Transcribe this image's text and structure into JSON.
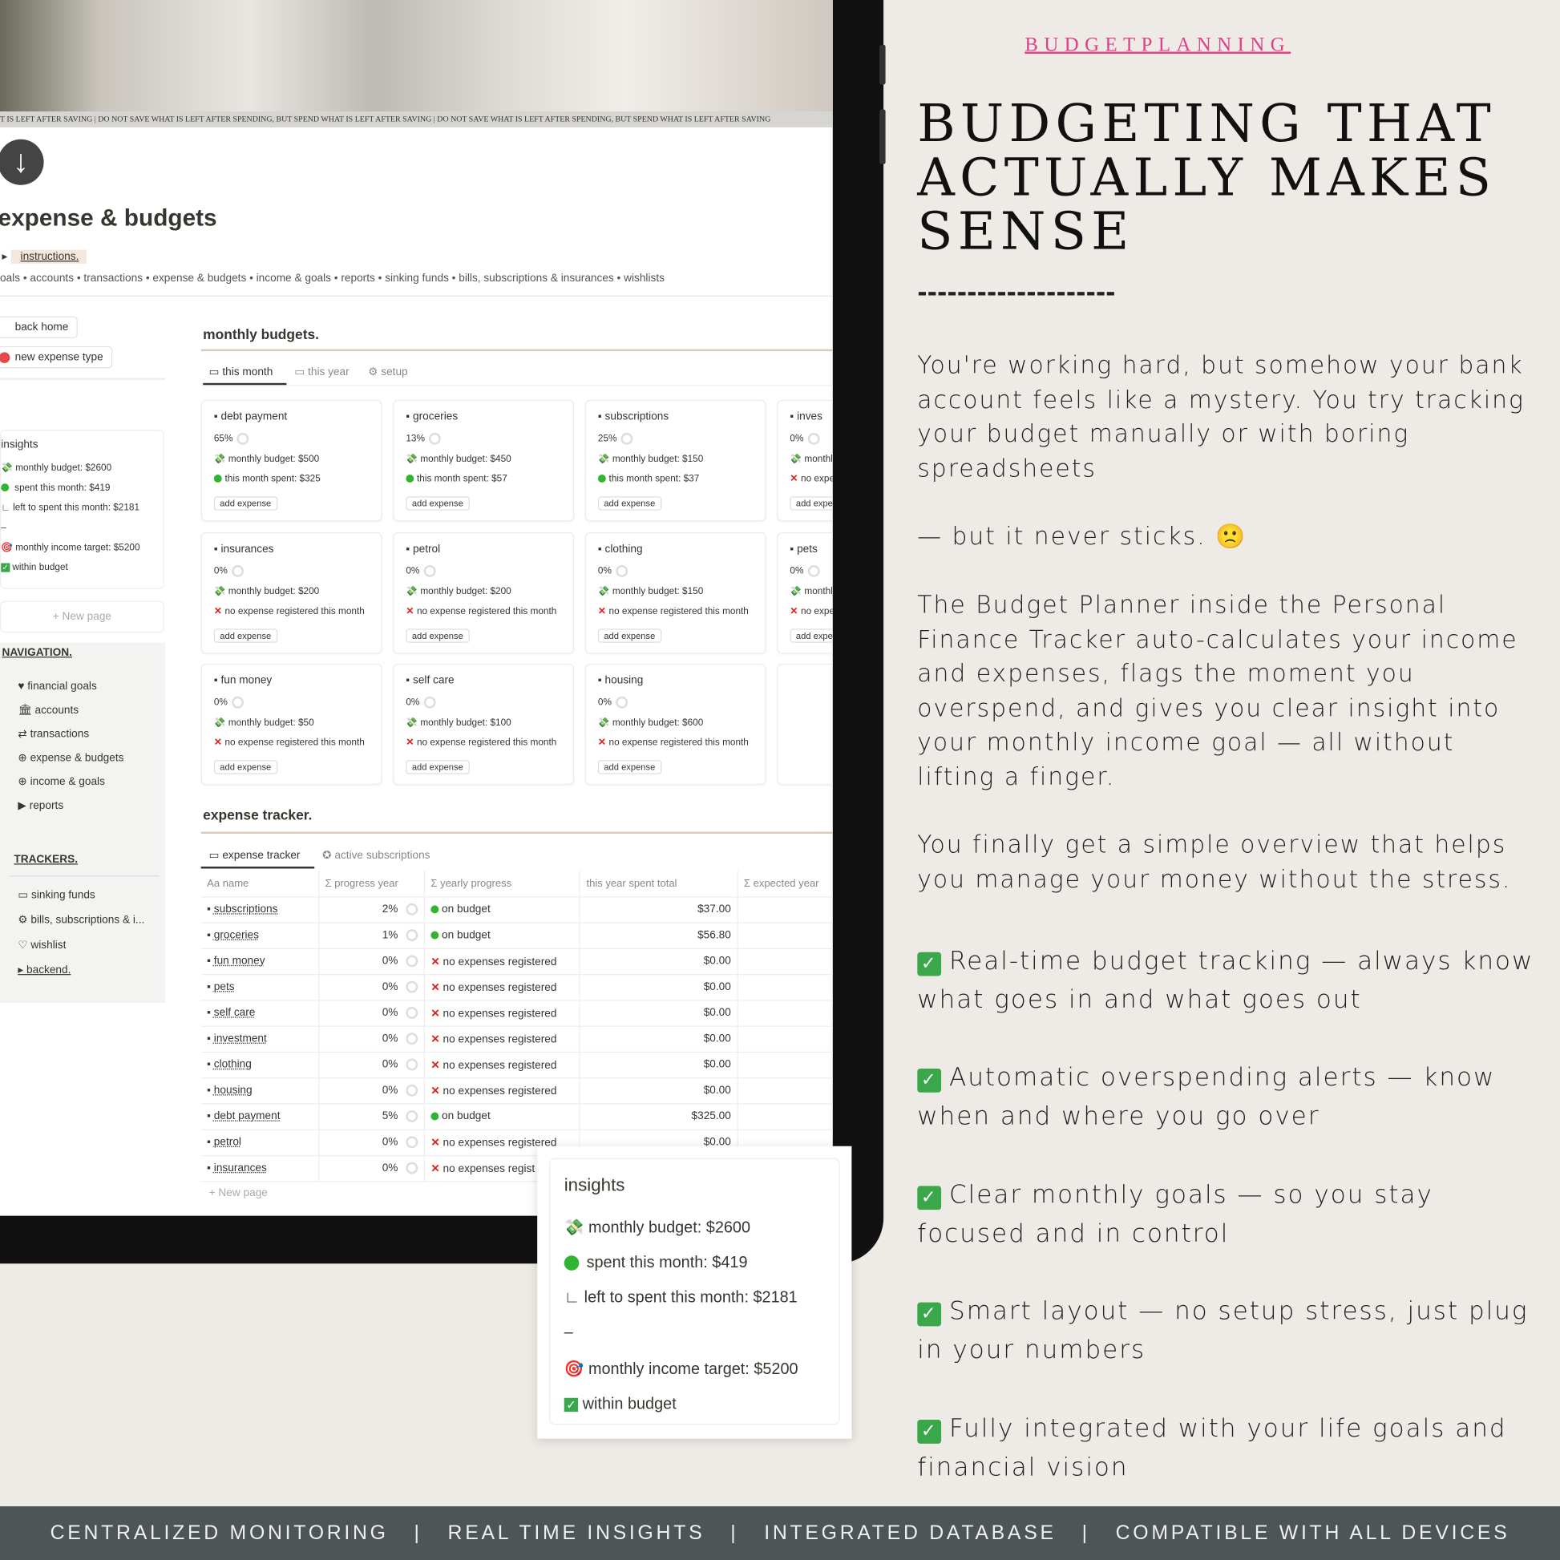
{
  "screen": {
    "quote_strip": "T IS LEFT AFTER SAVING | DO NOT SAVE WHAT IS LEFT AFTER SPENDING, BUT SPEND WHAT IS LEFT AFTER SAVING | DO NOT SAVE WHAT IS LEFT AFTER SPENDING, BUT SPEND WHAT IS LEFT AFTER SAVING",
    "page_title": "expense & budgets",
    "instructions": "instructions.",
    "breadcrumb": "oals • accounts • transactions • expense & budgets • income & goals • reports • sinking funds • bills, subscriptions & insurances • wishlists",
    "sidebar": {
      "back_home": "back home",
      "new_expense_type": "new expense type",
      "insights_title": "insights",
      "insights": [
        "monthly budget: $2600",
        "spent this month: $419",
        "left to spent this month: $2181",
        "–",
        "monthly income target: $5200",
        "within budget"
      ],
      "new_page": "New page",
      "navigation_title": "NAVIGATION.",
      "navigation": [
        "financial goals",
        "accounts",
        "transactions",
        "expense & budgets",
        "income & goals",
        "reports"
      ],
      "trackers_title": "TRACKERS.",
      "trackers": [
        "sinking funds",
        "bills, subscriptions & i...",
        "wishlist",
        "backend."
      ]
    },
    "monthly": {
      "title": "monthly budgets.",
      "tabs": [
        "this month",
        "this year",
        "setup"
      ],
      "cards": [
        {
          "name": "debt payment",
          "pct": "65%",
          "budget": "monthly budget: $500",
          "status": "this month spent: $325",
          "ok": true
        },
        {
          "name": "groceries",
          "pct": "13%",
          "budget": "monthly budget: $450",
          "status": "this month spent: $57",
          "ok": true
        },
        {
          "name": "subscriptions",
          "pct": "25%",
          "budget": "monthly budget: $150",
          "status": "this month spent: $37",
          "ok": true
        },
        {
          "name": "inves",
          "pct": "0%",
          "budget": "monthly",
          "status": "no expe",
          "ok": false
        },
        {
          "name": "insurances",
          "pct": "0%",
          "budget": "monthly budget: $200",
          "status": "no expense registered this month",
          "ok": false
        },
        {
          "name": "petrol",
          "pct": "0%",
          "budget": "monthly budget: $200",
          "status": "no expense registered this month",
          "ok": false
        },
        {
          "name": "clothing",
          "pct": "0%",
          "budget": "monthly budget: $150",
          "status": "no expense registered this month",
          "ok": false
        },
        {
          "name": "pets",
          "pct": "0%",
          "budget": "monthly",
          "status": "no expe",
          "ok": false
        },
        {
          "name": "fun money",
          "pct": "0%",
          "budget": "monthly budget: $50",
          "status": "no expense registered this month",
          "ok": false
        },
        {
          "name": "self care",
          "pct": "0%",
          "budget": "monthly budget: $100",
          "status": "no expense registered this month",
          "ok": false
        },
        {
          "name": "housing",
          "pct": "0%",
          "budget": "monthly budget: $600",
          "status": "no expense registered this month",
          "ok": false
        }
      ],
      "add_expense": "add expense"
    },
    "tracker": {
      "title": "expense tracker.",
      "tabs": [
        "expense tracker",
        "active subscriptions"
      ],
      "columns": [
        "Aa name",
        "Σ progress year",
        "Σ yearly progress",
        "this year spent total",
        "Σ expected year"
      ],
      "rows": [
        [
          "subscriptions",
          "2%",
          "on budget",
          "$37.00"
        ],
        [
          "groceries",
          "1%",
          "on budget",
          "$56.80"
        ],
        [
          "fun money",
          "0%",
          "no expenses registered",
          "$0.00"
        ],
        [
          "pets",
          "0%",
          "no expenses registered",
          "$0.00"
        ],
        [
          "self care",
          "0%",
          "no expenses registered",
          "$0.00"
        ],
        [
          "investment",
          "0%",
          "no expenses registered",
          "$0.00"
        ],
        [
          "clothing",
          "0%",
          "no expenses registered",
          "$0.00"
        ],
        [
          "housing",
          "0%",
          "no expenses registered",
          "$0.00"
        ],
        [
          "debt payment",
          "5%",
          "on budget",
          "$325.00"
        ],
        [
          "petrol",
          "0%",
          "no expenses registered",
          "$0.00"
        ],
        [
          "insurances",
          "0%",
          "no expenses regist",
          ""
        ]
      ],
      "new_page": "New page"
    }
  },
  "popup": {
    "title": "insights",
    "rows": [
      "monthly budget: $2600",
      "spent this month: $419",
      "left to spent this month: $2181",
      "–",
      "monthly income target: $5200",
      "within budget"
    ]
  },
  "right": {
    "brand": "BUDGETPLANNING",
    "headline": [
      "BUDGETING THAT",
      "ACTUALLY MAKES",
      "SENSE"
    ],
    "dashes": "--------------------",
    "p1": "You're working hard, but somehow your bank account feels like a mystery. You try tracking your budget manually or with boring spreadsheets",
    "p2": "— but it never sticks. 🙁",
    "p3": "The Budget Planner inside the Personal Finance Tracker auto-calculates your income and expenses, flags the moment you overspend, and gives you clear insight into your monthly income goal — all without lifting a finger.",
    "p4": "You finally get a simple overview that helps you manage your money without the stress.",
    "bullets": [
      "Real-time budget tracking — always know what goes in and what goes out",
      "Automatic overspending alerts — know when and where you go over",
      "Clear monthly goals — so you stay focused and in control",
      "Smart layout — no setup stress, just plug in your numbers",
      "Fully integrated with your life goals and financial vision"
    ]
  },
  "footer": "CENTRALIZED MONITORING   |   REAL TIME INSIGHTS   |   INTEGRATED DATABASE   |   COMPATIBLE WITH ALL DEVICES",
  "colors": {
    "brand_pink": "#e0408a",
    "footer_bg": "#4d5557",
    "ok_green": "#2fb52f",
    "error_red": "#e02020",
    "check_green": "#3aa84a"
  }
}
